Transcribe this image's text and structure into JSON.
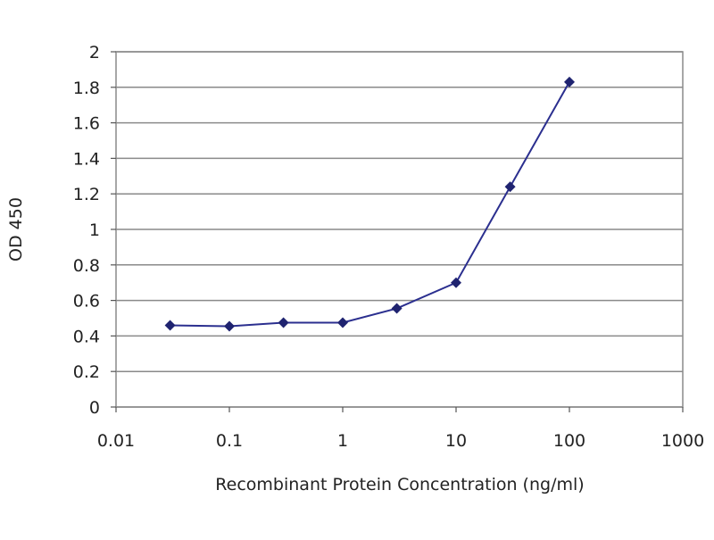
{
  "chart_data": {
    "type": "line",
    "title": "",
    "xlabel": "Recombinant Protein Concentration (ng/ml)",
    "ylabel": "OD 450",
    "xscale": "log",
    "xlim": [
      0.01,
      1000
    ],
    "ylim": [
      0,
      2
    ],
    "xticks": [
      "0.01",
      "0.1",
      "1",
      "10",
      "100",
      "1000"
    ],
    "yticks": [
      "0",
      "0.2",
      "0.4",
      "0.6",
      "0.8",
      "1",
      "1.2",
      "1.4",
      "1.6",
      "1.8",
      "2"
    ],
    "grid": "horizontal",
    "legend": "none",
    "series": [
      {
        "x": [
          0.03,
          0.1,
          0.3,
          1,
          3,
          10,
          30,
          100
        ],
        "y": [
          0.46,
          0.455,
          0.475,
          0.475,
          0.555,
          0.7,
          1.24,
          1.83
        ]
      }
    ],
    "colors": {
      "line": "#2b2f8f",
      "marker": "#1f2370",
      "grid": "#8a8a8a",
      "plot_border": "#8a8a8a"
    }
  }
}
